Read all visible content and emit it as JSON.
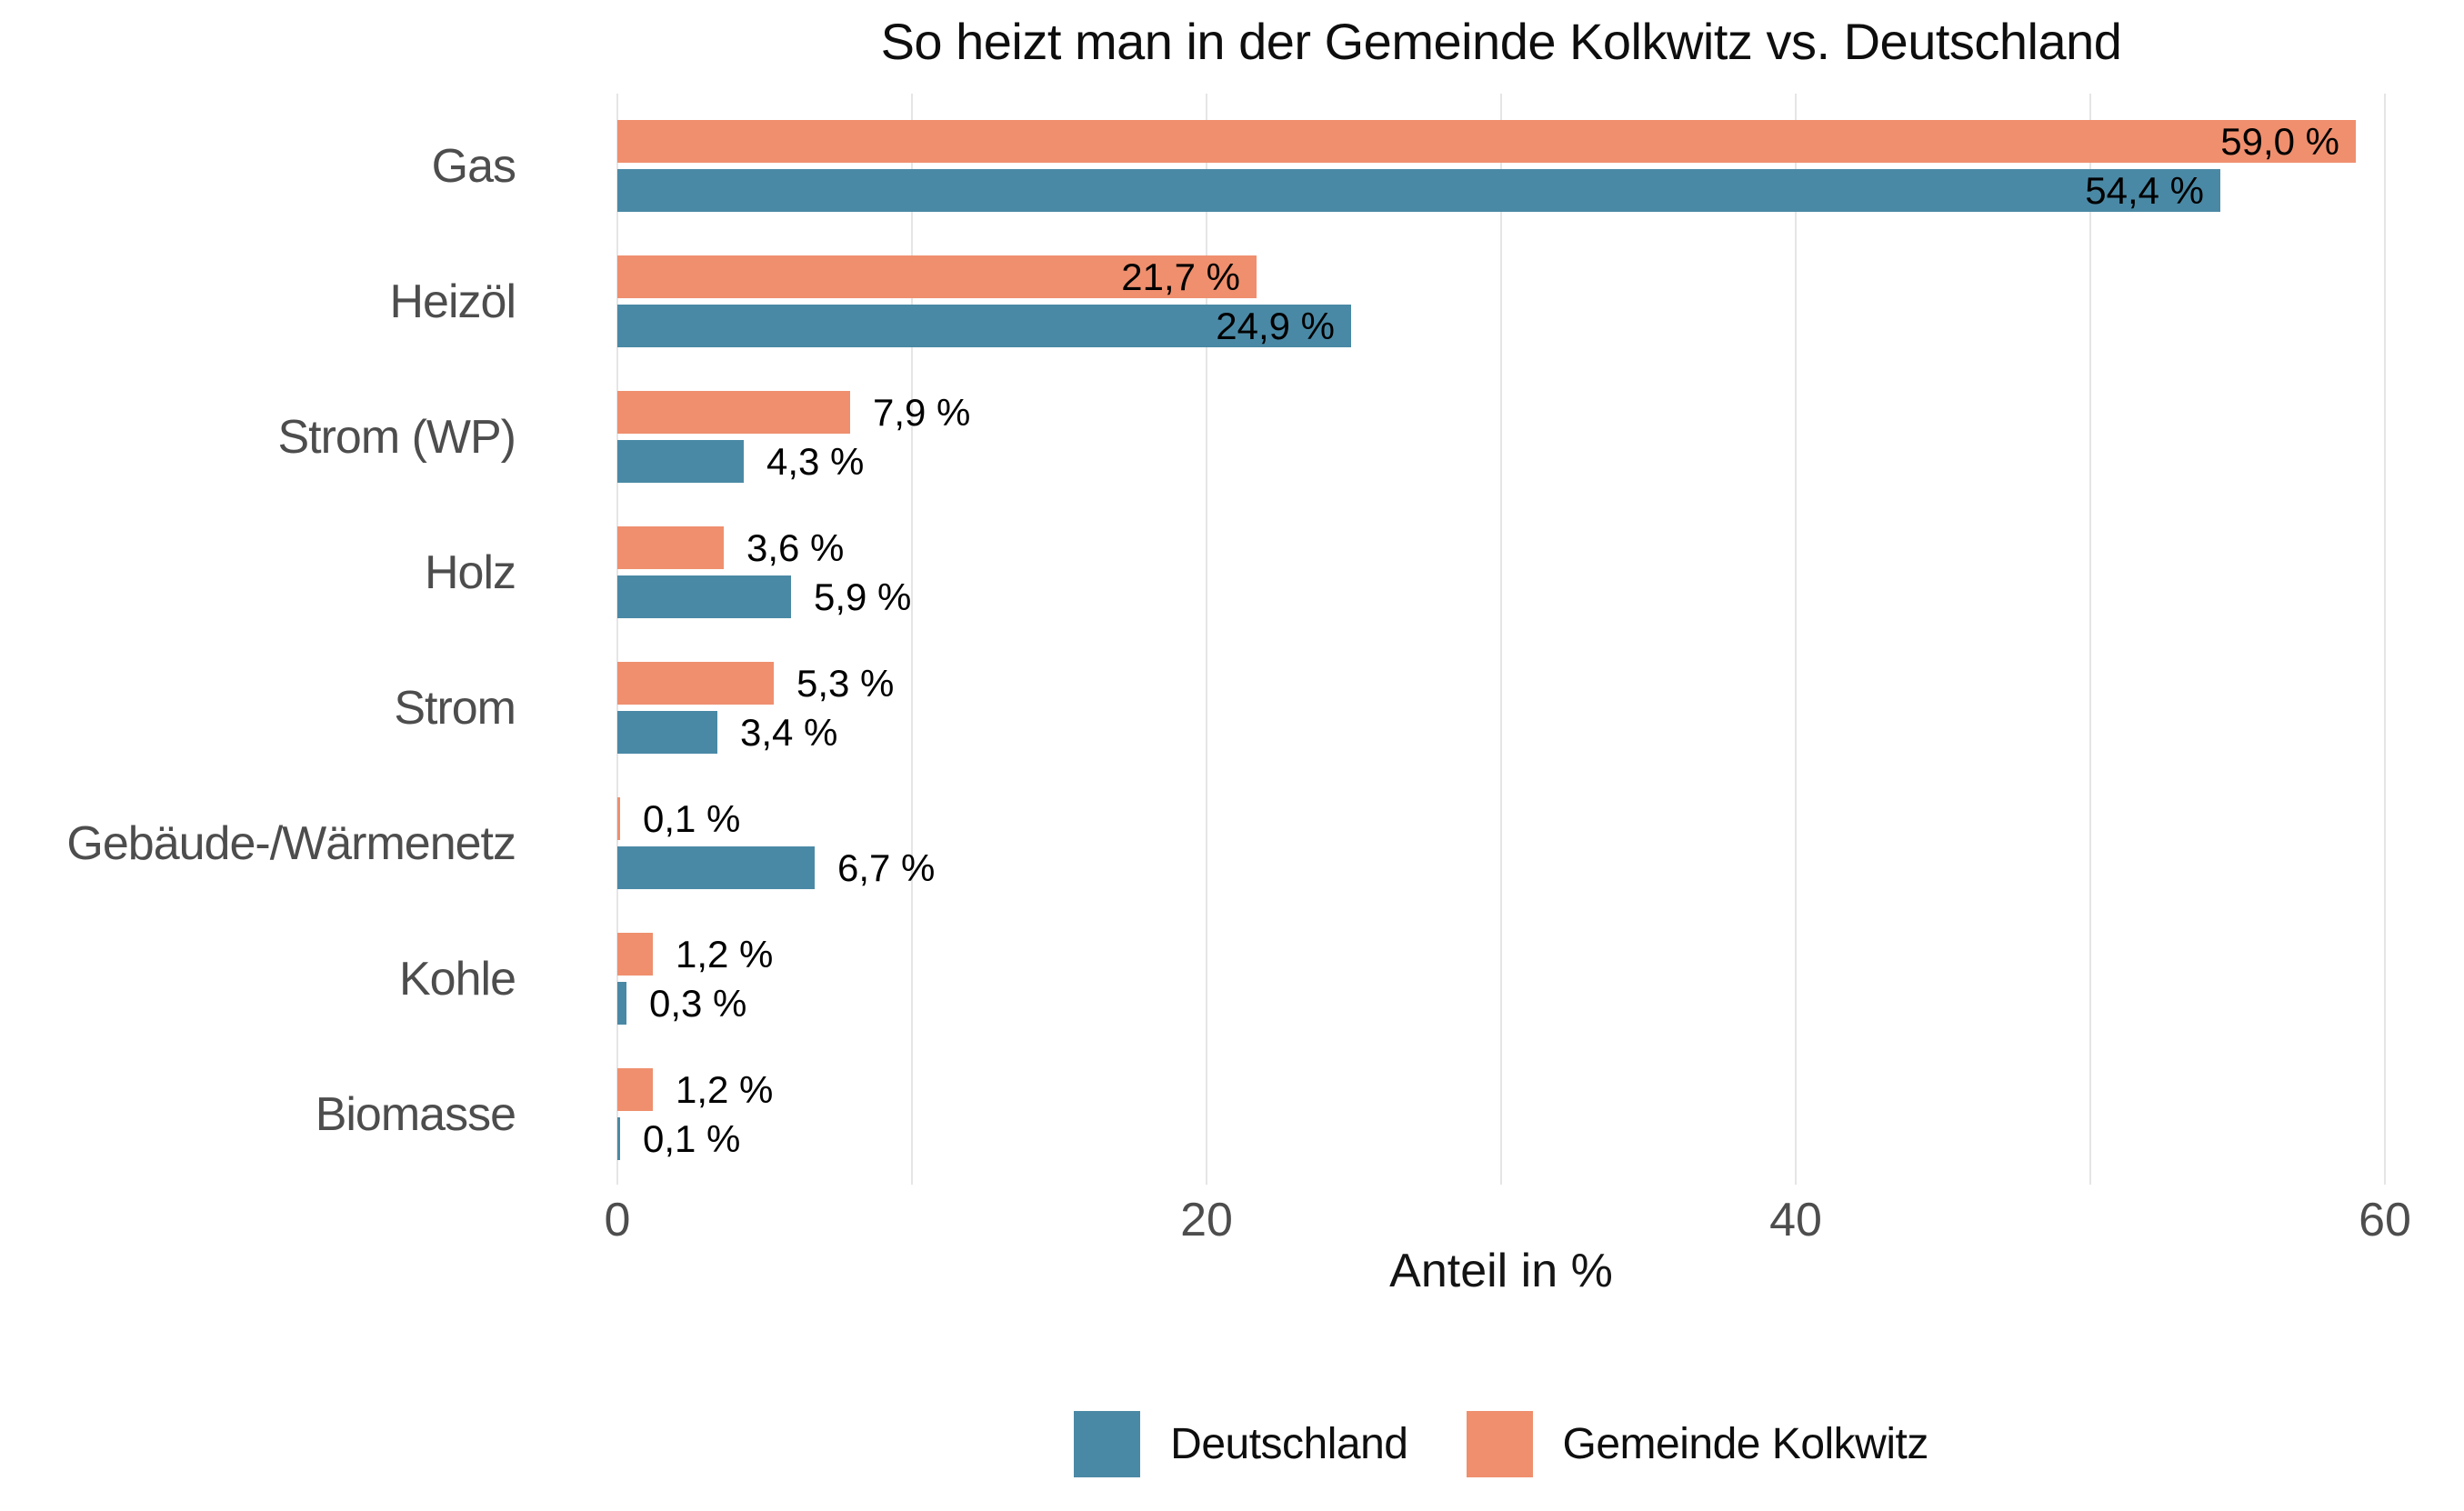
{
  "chart_data": {
    "type": "bar",
    "orientation": "horizontal",
    "title": "So heizt man in der Gemeinde Kolkwitz vs. Deutschland",
    "xlabel": "Anteil in %",
    "xlim": [
      0,
      60
    ],
    "xticks": [
      {
        "value": 0,
        "label": "0"
      },
      {
        "value": 20,
        "label": "20"
      },
      {
        "value": 40,
        "label": "40"
      },
      {
        "value": 60,
        "label": "60"
      }
    ],
    "gridline_values": [
      0,
      10,
      20,
      30,
      40,
      50,
      60
    ],
    "grid": "vertical, light gray",
    "legend_position": "bottom",
    "categories": [
      "Gas",
      "Heizöl",
      "Strom (WP)",
      "Holz",
      "Strom",
      "Gebäude-/Wärmenetz",
      "Kohle",
      "Biomasse"
    ],
    "series": [
      {
        "name": "Gemeinde Kolkwitz",
        "color": "#ef8f6e",
        "values": [
          59.0,
          21.7,
          7.9,
          3.6,
          5.3,
          0.1,
          1.2,
          1.2
        ],
        "labels": [
          "59,0 %",
          "21,7 %",
          "7,9 %",
          "3,6 %",
          "5,3 %",
          "0,1 %",
          "1,2 %",
          "1,2 %"
        ]
      },
      {
        "name": "Deutschland",
        "color": "#4a89a5",
        "values": [
          54.4,
          24.9,
          4.3,
          5.9,
          3.4,
          6.7,
          0.3,
          0.1
        ],
        "labels": [
          "54,4 %",
          "24,9 %",
          "4,3 %",
          "5,9 %",
          "3,4 %",
          "6,7 %",
          "0,3 %",
          "0,1 %"
        ]
      }
    ],
    "legend": [
      {
        "label": "Deutschland",
        "color": "#4a89a5"
      },
      {
        "label": "Gemeinde Kolkwitz",
        "color": "#ef8f6e"
      }
    ],
    "colors": {
      "grid": "#e5e5e5",
      "category_label": "#4d4d4d",
      "tick_label": "#4d4d4d",
      "value_label": "#000000",
      "title": "#0e0e0e"
    }
  }
}
